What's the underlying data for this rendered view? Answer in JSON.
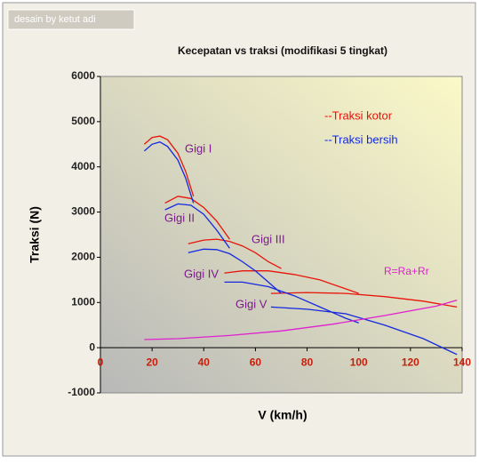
{
  "chart_data": {
    "type": "line",
    "credit": "desain by ketut adi",
    "title": "Kecepatan vs traksi (modifikasi 5 tingkat)",
    "xlabel": "V (km/h)",
    "ylabel": "Traksi (N)",
    "xlim": [
      0,
      140
    ],
    "ylim": [
      -1000,
      6000
    ],
    "xticks": [
      0,
      20,
      40,
      60,
      80,
      100,
      120,
      140
    ],
    "yticks": [
      -1000,
      0,
      1000,
      2000,
      3000,
      4000,
      5000,
      6000
    ],
    "grid": false,
    "legend": "upper right",
    "series": [
      {
        "name": "--Traksi kotor",
        "color": "#e8140a",
        "x": [
          17,
          20,
          23,
          26,
          30,
          33,
          36,
          null,
          25,
          30,
          35,
          40,
          45,
          50,
          null,
          34,
          40,
          45,
          50,
          55,
          60,
          65,
          70,
          null,
          48,
          55,
          65,
          75,
          85,
          95,
          100,
          null,
          66,
          80,
          95,
          110,
          125,
          138
        ],
        "values": [
          4500,
          4650,
          4680,
          4600,
          4300,
          3900,
          3350,
          null,
          3200,
          3350,
          3300,
          3100,
          2800,
          2400,
          null,
          2300,
          2380,
          2400,
          2350,
          2250,
          2100,
          1900,
          1750,
          null,
          1650,
          1700,
          1700,
          1620,
          1500,
          1300,
          1200,
          null,
          1200,
          1220,
          1200,
          1130,
          1030,
          900
        ]
      },
      {
        "name": "--Traksi bersih",
        "color": "#1428e0",
        "x": [
          17,
          20,
          23,
          26,
          30,
          33,
          36,
          null,
          25,
          30,
          35,
          40,
          45,
          50,
          null,
          34,
          40,
          45,
          50,
          55,
          60,
          65,
          70,
          null,
          48,
          55,
          65,
          75,
          85,
          95,
          100,
          null,
          66,
          80,
          95,
          110,
          125,
          138
        ],
        "values": [
          4350,
          4500,
          4550,
          4450,
          4150,
          3750,
          3200,
          null,
          3050,
          3180,
          3150,
          2950,
          2600,
          2200,
          null,
          2100,
          2180,
          2170,
          2080,
          1900,
          1700,
          1450,
          1200,
          null,
          1450,
          1450,
          1350,
          1150,
          900,
          650,
          550,
          null,
          900,
          850,
          750,
          500,
          200,
          -150
        ]
      },
      {
        "name": "R=Ra+Rr",
        "color": "#e020d0",
        "x": [
          17,
          30,
          50,
          70,
          90,
          110,
          130,
          138
        ],
        "values": [
          180,
          200,
          270,
          370,
          520,
          710,
          920,
          1050
        ]
      }
    ],
    "annotations": [
      "Gigi I",
      "Gigi II",
      "Gigi III",
      "Gigi IV",
      "Gigi V"
    ]
  }
}
